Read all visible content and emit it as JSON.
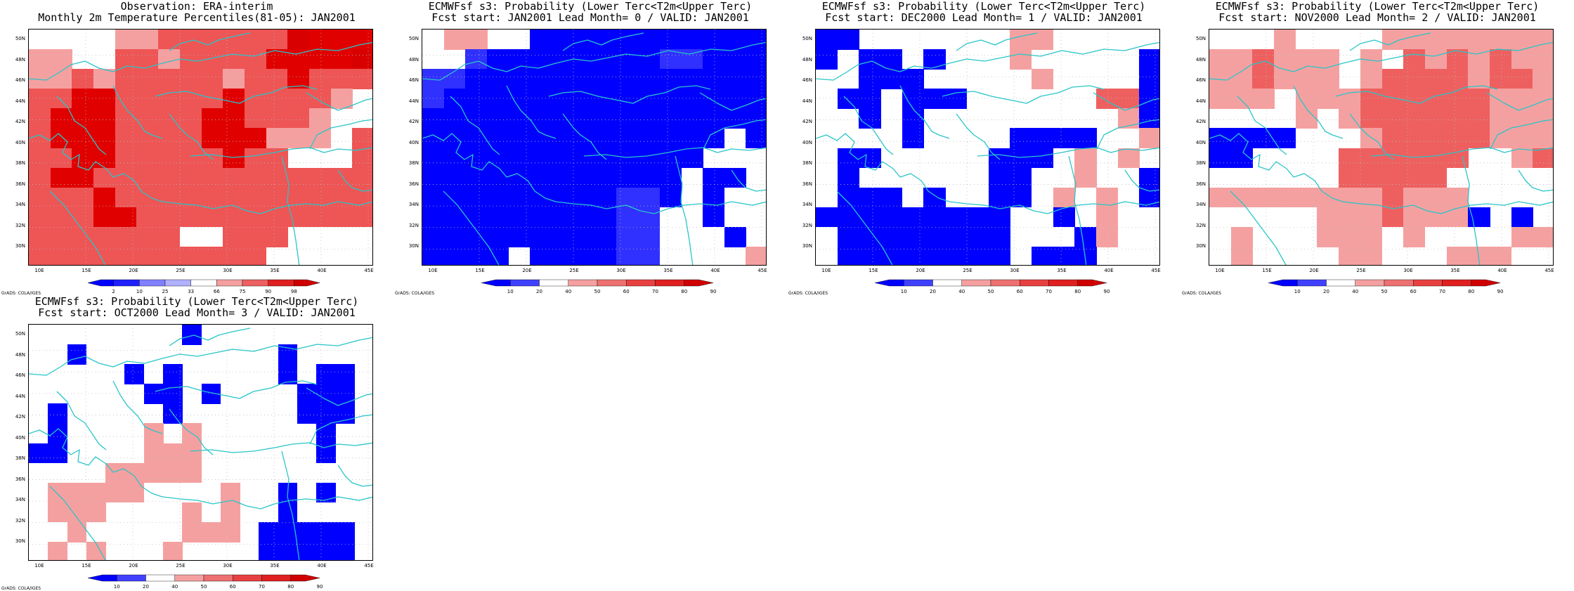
{
  "colors": {
    "blue": "#0000ff",
    "blue_light": "#3030ff",
    "white": "#ffffff",
    "pink": "#f5a0a0",
    "red_mid": "#ee6060",
    "red_dark": "#e00000",
    "red_deep": "#d80000",
    "coast": "#29c5c8",
    "grid": "#bbbbbb"
  },
  "axes": {
    "lat_labels": [
      "50N",
      "48N",
      "46N",
      "44N",
      "42N",
      "40N",
      "38N",
      "36N",
      "34N",
      "32N",
      "30N"
    ],
    "lon_labels": [
      "10E",
      "15E",
      "20E",
      "25E",
      "30E",
      "35E",
      "40E",
      "45E"
    ]
  },
  "panels": [
    {
      "id": "obs",
      "title1": "Observation: ERA-interim",
      "title2": "Monthly 2m Temperature Percentiles(81-05): JAN2001",
      "cbar_colors": [
        "#0000ff",
        "#2020ff",
        "#8080ff",
        "#b0b0ff",
        "#ffffff",
        "#f5a0a0",
        "#ee6060",
        "#e02020",
        "#d00000"
      ],
      "cbar_labels": [
        "2",
        "10",
        "25",
        "33",
        "66",
        "75",
        "90",
        "98"
      ],
      "credit": "GrADS: COLA/IGES",
      "grid": [
        "wwwwrrRRRRRR0ddd",
        "rrwwRRrRRRRdddd0",
        "rrRrRRRRRrRRdRRR",
        "RRddRRRRRdRRRRrw",
        "RdddRRRRddRRRrww",
        "RdddRRRRdddrrrwR",
        "RRddRRRRRdRRwwwR",
        "RddRRRRRRRRRRRRR",
        "RRRdRRRRRRRRRRRR",
        "RRRddRRRRRRRRRRR",
        "RRRRRRRwwRRRwwww",
        "RRRRRRRRRRRwwwww"
      ]
    },
    {
      "id": "lead0",
      "title1": "ECMWFsf s3: Probability (Lower Terc<T2m<Upper Terc)",
      "title2": "Fcst start: JAN2001  Lead Month= 0 / VALID: JAN2001",
      "cbar_colors": [
        "#0000ff",
        "#4040ff",
        "#ffffff",
        "#f5a0a0",
        "#ee7070",
        "#e84040",
        "#e02020",
        "#d00000"
      ],
      "cbar_labels": [
        "10",
        "20",
        "40",
        "50",
        "60",
        "70",
        "80",
        "90"
      ],
      "credit": "GrADS: COLA/IGES",
      "grid": [
        "wppwwbbbbbbbbbbb",
        "wwBbbbbbbbbBBbbb",
        "BBbbbbbbbbbbbbbb",
        "Bbbbbbbbbbbbbbbb",
        "bbbbbbbbbbbbbbbb",
        "bbbbbbbbbbbbbbwb",
        "bbbbbbbbbbbbbwww",
        "bbbbbbbbbbbbwbbw",
        "bbbbbbbbbBBbwbww",
        "bbbbbbbbbBBwwbww",
        "bbbbbbbbbBBwwwbw",
        "bbbbwbbbbBBwwwwp"
      ]
    },
    {
      "id": "lead1",
      "title1": "ECMWFsf s3: Probability (Lower Terc<T2m<Upper Terc)",
      "title2": "Fcst start: DEC2000  Lead Month= 1 / VALID: JAN2001",
      "cbar_colors": [
        "#0000ff",
        "#4040ff",
        "#ffffff",
        "#f5a0a0",
        "#ee7070",
        "#e84040",
        "#e02020",
        "#d00000"
      ],
      "cbar_labels": [
        "10",
        "20",
        "40",
        "50",
        "60",
        "70",
        "80",
        "90"
      ],
      "credit": "GrADS: COLA/IGES",
      "grid": [
        "bbwwwwwwwppwwwww",
        "bwbbwbwwwpwwwwwb",
        "wwbbbwwwwwpwwwwb",
        "wbbwbbbwwwwwwrrb",
        "wwbwbwwwwwwwwwpb",
        "wwwwbwwwwbbbbwwp",
        "wbbwwwwwbbbwpwpw",
        "wbwwwwwwbbwwpwwb",
        "wbbbwbwwbbwpwpwb",
        "bbbbbbbbbwwbwpww",
        "wbbbbbbbbwwwbpww",
        "wbbbbbbbbwbbbwww"
      ]
    },
    {
      "id": "lead2",
      "title1": "ECMWFsf s3: Probability (Lower Terc<T2m<Upper Terc)",
      "title2": "Fcst start: NOV2000  Lead Month= 2 / VALID: JAN2001",
      "cbar_colors": [
        "#0000ff",
        "#4040ff",
        "#ffffff",
        "#f5a0a0",
        "#ee7070",
        "#e84040",
        "#e02020",
        "#d00000"
      ],
      "cbar_labels": [
        "10",
        "20",
        "40",
        "50",
        "60",
        "70",
        "80",
        "90"
      ],
      "credit": "GrADS: COLA/IGES",
      "grid": [
        "wwwpwwwwpppppppp",
        "ppRpppwpwRpRpRpp",
        "ppRpppwpRRRRpRRp",
        "pppwpppRRRRRRppp",
        "wwwwpwpRRRRRRppp",
        "bbbbwwwpRRRRRppp",
        "bbwwwwRRRRRRwwpR",
        "wwwwwwRRRRRwwwww",
        "ppppppppRpppwwww",
        "wwwwwpppRpppbwbw",
        "wpwwwpppwpwwwwpp",
        "wpwwwwppwwwpppww"
      ]
    },
    {
      "id": "lead3",
      "title1": "ECMWFsf s3: Probability (Lower Terc<T2m<Upper Terc)",
      "title2": "Fcst start: OCT2000  Lead Month= 3 / VALID: JAN2001",
      "cbar_colors": [
        "#0000ff",
        "#4040ff",
        "#ffffff",
        "#f5a0a0",
        "#ee7070",
        "#e84040",
        "#e02020",
        "#d00000"
      ],
      "cbar_labels": [
        "10",
        "20",
        "40",
        "50",
        "60",
        "70",
        "80",
        "90"
      ],
      "credit": "GrADS: COLA/IGES",
      "grid": [
        "wwwwwwwwbwwwwwwwww",
        "wwbwwwwwwwwwwbwwww",
        "wwwwwbwbwwwwwbwbbw",
        "wwwwwwbbwbwwwwbbbw",
        "wbwwwwwbwwwwwwbbbw",
        "wbwwwwpwpwwwwwwbww",
        "bbwwwwpppwwwwwwbww",
        "wwwwpppppwwwwwwwww",
        "wpppppwwwwpwwbwbww",
        "wpppwwwwpwpwwbwwww",
        "wwpwwwwwpppwbbbbbw",
        "wpwpwwwpwwwwbbbbbw"
      ]
    }
  ]
}
